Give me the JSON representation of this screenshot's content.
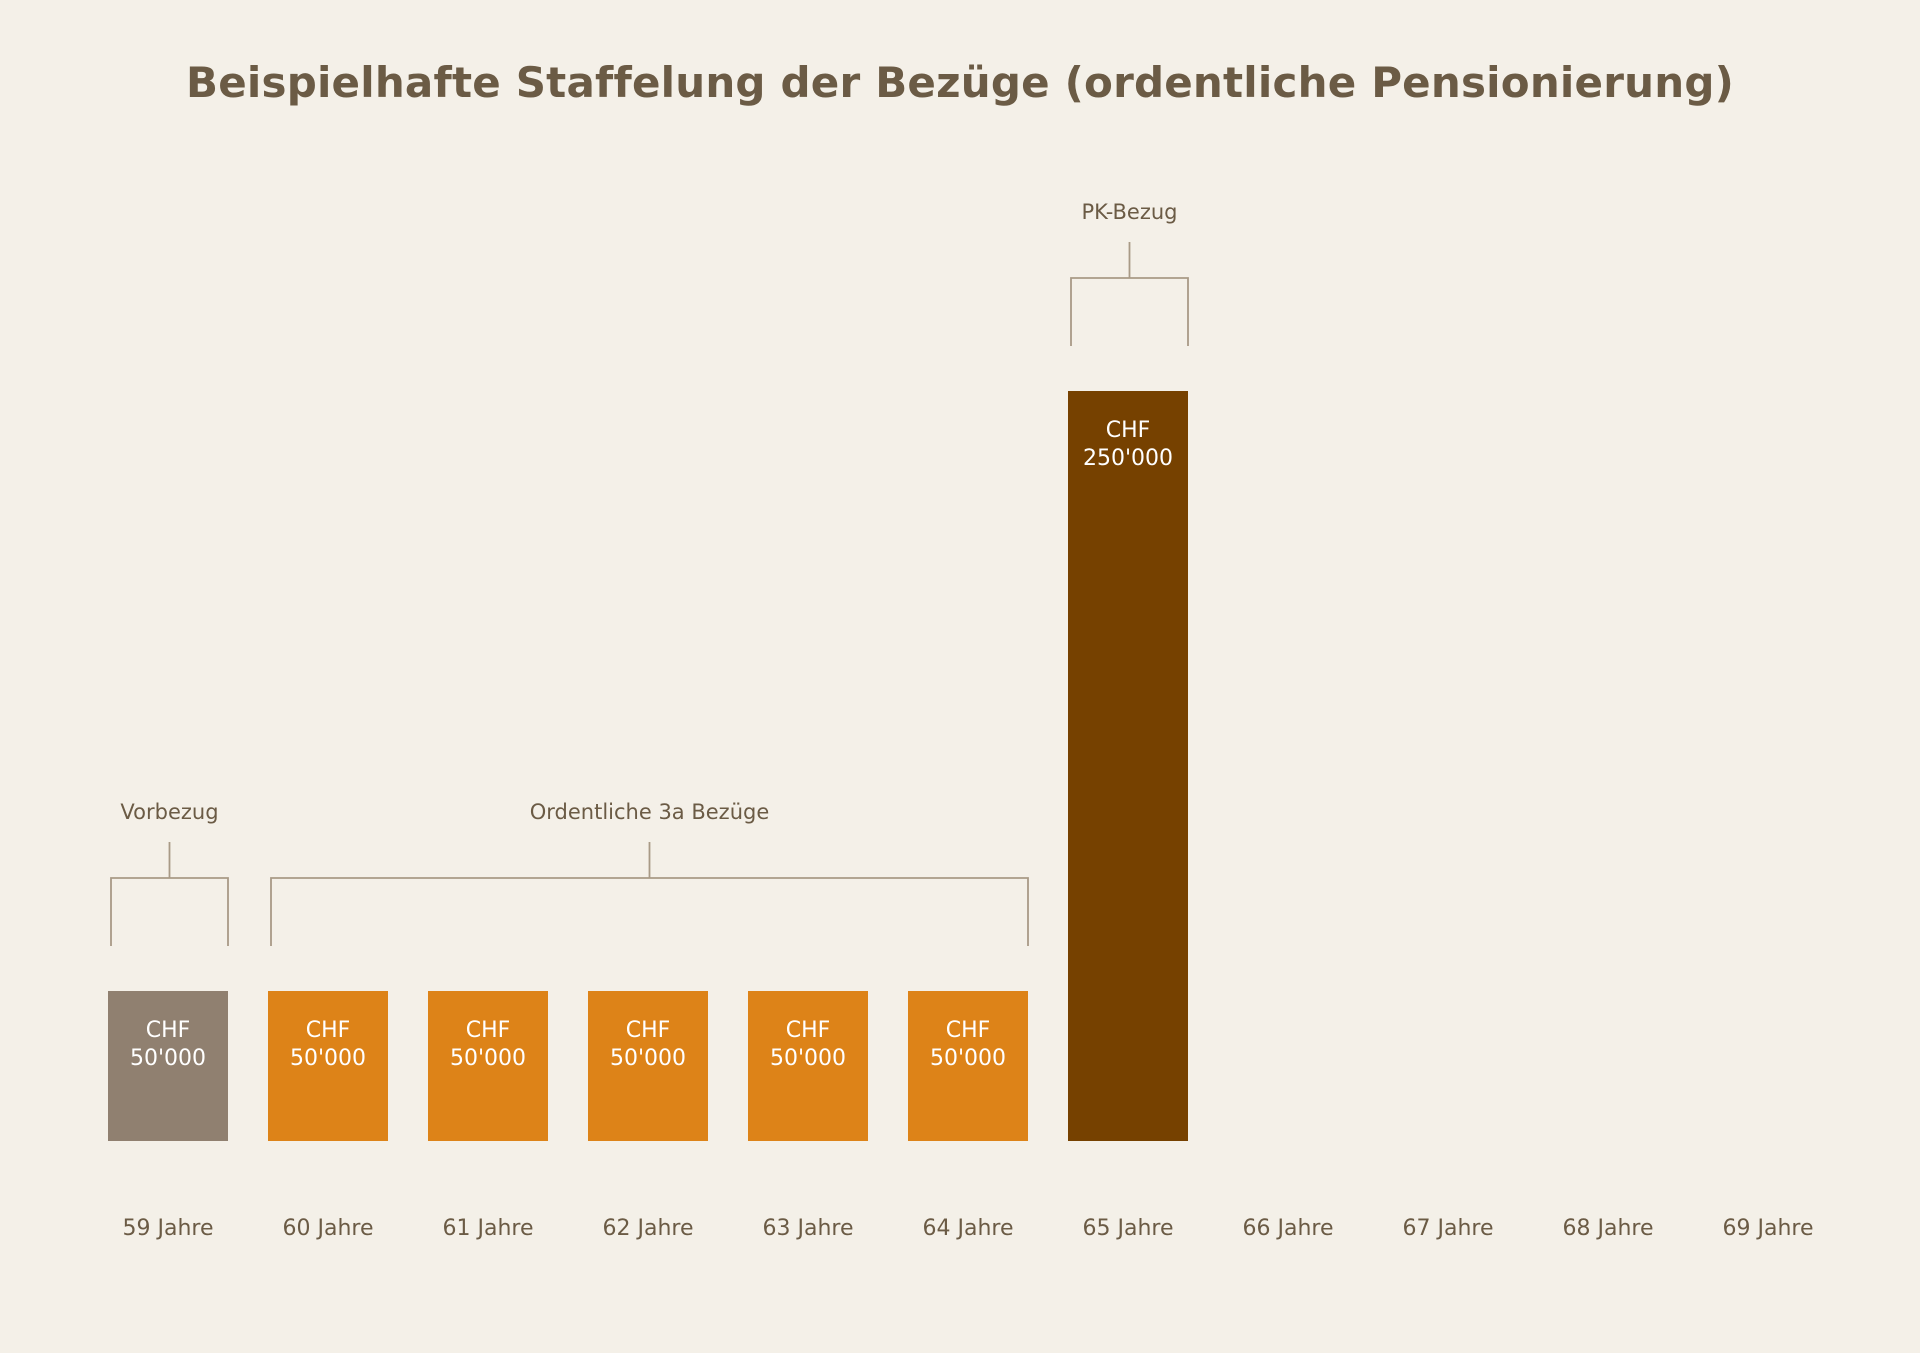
{
  "chart_data": {
    "type": "bar",
    "title": "Beispielhafte Staffelung der Bezüge (ordentliche Pensionierung)",
    "xlabel": "",
    "ylabel": "",
    "grid": false,
    "categories": [
      "59 Jahre",
      "60 Jahre",
      "61 Jahre",
      "62 Jahre",
      "63 Jahre",
      "64 Jahre",
      "65 Jahre",
      "66 Jahre",
      "67 Jahre",
      "68 Jahre",
      "69 Jahre"
    ],
    "values": [
      50000,
      50000,
      50000,
      50000,
      50000,
      50000,
      250000,
      null,
      null,
      null,
      null
    ],
    "currency": "CHF",
    "data_labels": [
      "50'000",
      "50'000",
      "50'000",
      "50'000",
      "50'000",
      "50'000",
      "250'000",
      "",
      "",
      "",
      ""
    ],
    "bar_colors": [
      "#908070",
      "#dd8318",
      "#dd8318",
      "#dd8318",
      "#dd8318",
      "#dd8318",
      "#764100",
      null,
      null,
      null,
      null
    ],
    "groups": [
      {
        "label": "Vorbezug",
        "from": 0,
        "to": 0
      },
      {
        "label": "Ordentliche 3a Bezüge",
        "from": 1,
        "to": 5
      },
      {
        "label": "PK-Bezug",
        "from": 6,
        "to": 6
      }
    ]
  }
}
